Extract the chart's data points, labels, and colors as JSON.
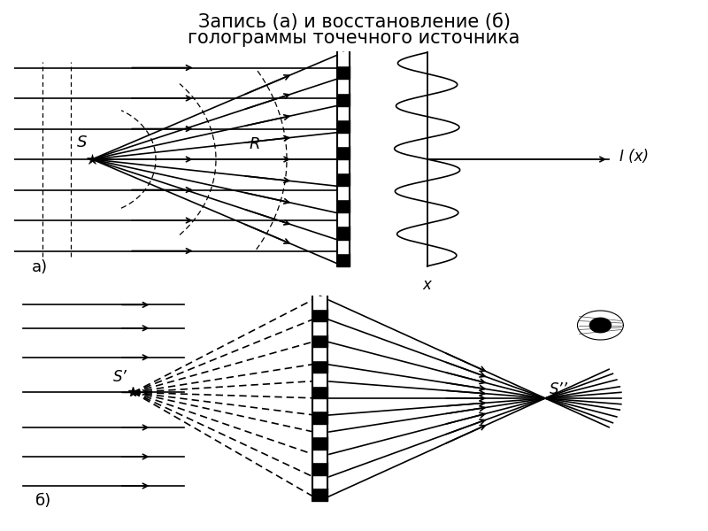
{
  "title_line1": "Запись (а) и восстановление (б)",
  "title_line2": "голограммы точечного источника",
  "label_a": "а)",
  "label_b": "б)",
  "label_S": "S",
  "label_R": "R",
  "label_Sp": "S’",
  "label_Spp": "S’’",
  "label_Ix": "I (x)",
  "label_x": "x",
  "bg_color": "#ffffff",
  "line_color": "#000000"
}
